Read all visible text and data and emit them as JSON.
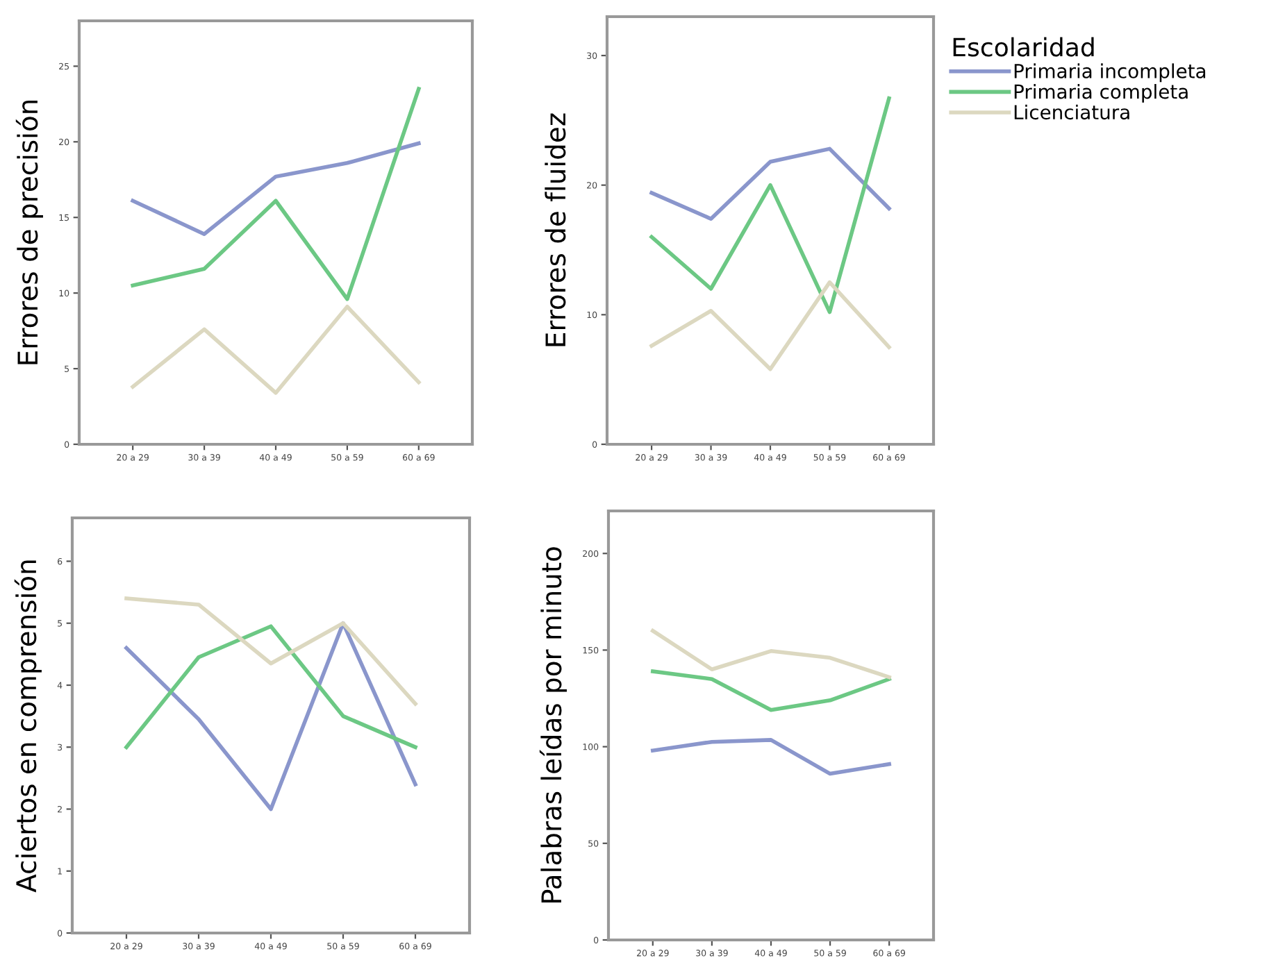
{
  "chart_data": [
    {
      "type": "line",
      "ylabel": "Errores de precisión",
      "categories": [
        "20 a 29",
        "30 a 39",
        "40 a 49",
        "50 a 59",
        "60 a 69"
      ],
      "ylim": [
        0,
        28
      ],
      "yticks": [
        0,
        5,
        10,
        15,
        20,
        25
      ],
      "grid": false,
      "marker": "none",
      "legend": false,
      "series": [
        {
          "color": "#8a96cc",
          "values": [
            16.1,
            13.9,
            17.7,
            18.6,
            19.9
          ]
        },
        {
          "color": "#6cc884",
          "values": [
            10.5,
            11.6,
            16.1,
            9.6,
            23.5
          ]
        },
        {
          "color": "#dcd8c0",
          "values": [
            3.8,
            7.6,
            3.4,
            9.1,
            4.1
          ]
        }
      ]
    },
    {
      "type": "line",
      "ylabel": "Errores de fluidez",
      "categories": [
        "20 a 29",
        "30 a 39",
        "40 a 49",
        "50 a 59",
        "60 a 69"
      ],
      "ylim": [
        0,
        33
      ],
      "yticks": [
        0,
        10,
        20,
        30
      ],
      "grid": false,
      "marker": "none",
      "legend": "right",
      "legend_title": "Escolaridad",
      "series": [
        {
          "name": "Primaria incompleta",
          "color": "#8a96cc",
          "values": [
            19.4,
            17.4,
            21.8,
            22.8,
            18.2
          ]
        },
        {
          "name": "Primaria completa",
          "color": "#6cc884",
          "values": [
            16.0,
            12.0,
            20.0,
            10.2,
            26.7
          ]
        },
        {
          "name": "Licenciatura",
          "color": "#dcd8c0",
          "values": [
            7.6,
            10.3,
            5.8,
            12.5,
            7.5
          ]
        }
      ]
    },
    {
      "type": "line",
      "ylabel": "Aciertos en comprensión",
      "categories": [
        "20 a 29",
        "30 a 39",
        "40 a 49",
        "50 a 59",
        "60 a 69"
      ],
      "ylim": [
        0,
        6.7
      ],
      "yticks": [
        0,
        1,
        2,
        3,
        4,
        5,
        6
      ],
      "grid": false,
      "marker": "none",
      "legend": false,
      "series": [
        {
          "color": "#8a96cc",
          "values": [
            4.6,
            3.45,
            2.0,
            5.0,
            2.4
          ]
        },
        {
          "color": "#6cc884",
          "values": [
            3.0,
            4.45,
            4.95,
            3.5,
            3.0
          ]
        },
        {
          "color": "#dcd8c0",
          "values": [
            5.4,
            5.3,
            4.35,
            5.0,
            3.7
          ]
        }
      ]
    },
    {
      "type": "line",
      "ylabel": "Palabras leídas por minuto",
      "categories": [
        "20 a 29",
        "30 a 39",
        "40 a 49",
        "50 a 59",
        "60 a 69"
      ],
      "ylim": [
        0,
        222
      ],
      "yticks": [
        0,
        50,
        100,
        150,
        200
      ],
      "grid": false,
      "marker": "none",
      "legend": false,
      "series": [
        {
          "color": "#8a96cc",
          "values": [
            98,
            102.5,
            103.5,
            86,
            91
          ]
        },
        {
          "color": "#6cc884",
          "values": [
            139,
            135,
            119,
            124,
            135
          ]
        },
        {
          "color": "#dcd8c0",
          "values": [
            160,
            140,
            149.5,
            146,
            136
          ]
        }
      ]
    }
  ]
}
